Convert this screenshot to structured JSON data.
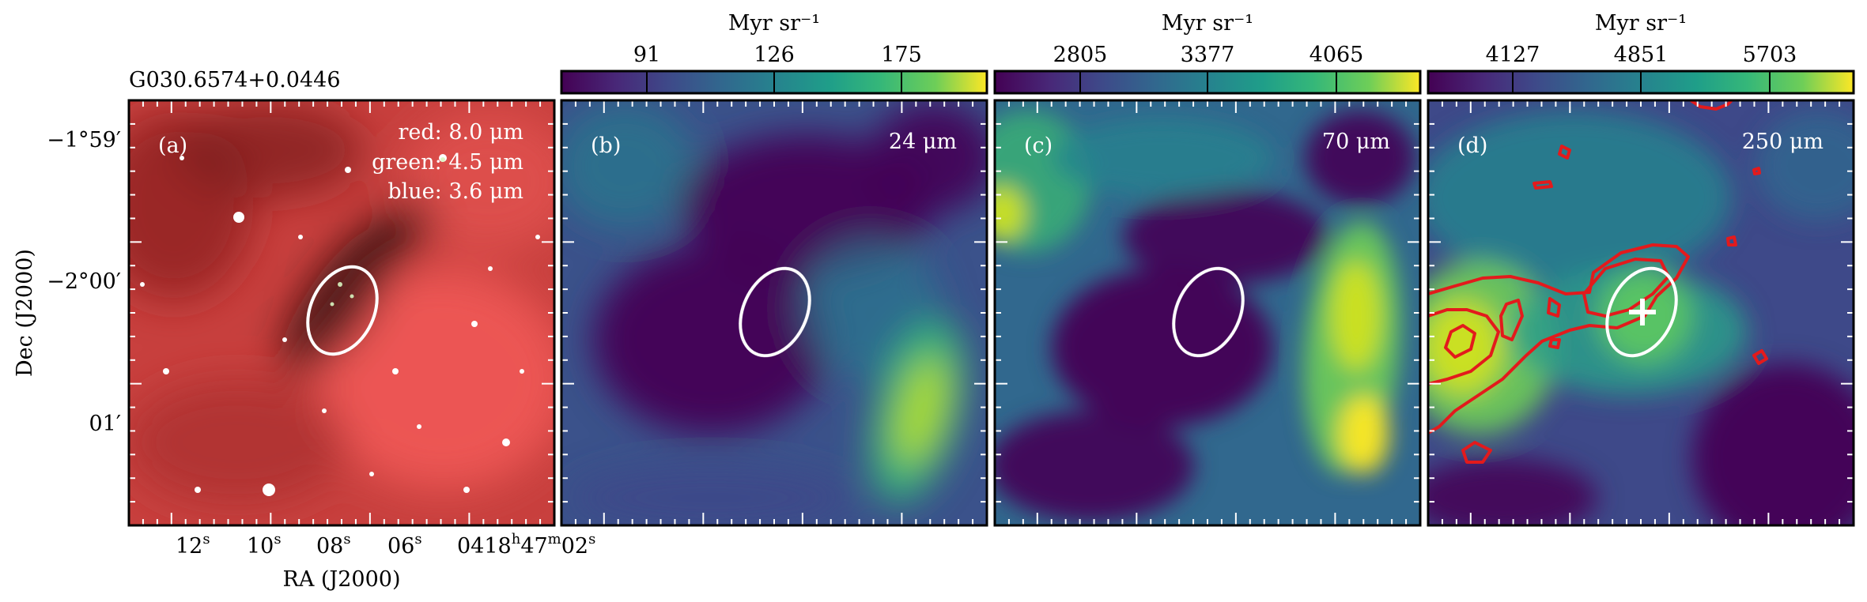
{
  "figure": {
    "source_name": "G030.6574+0.0446",
    "axes": {
      "ra_label": "RA (J2000)",
      "dec_label": "Dec (J2000)",
      "ra_ticks": [
        {
          "main": "12",
          "sup": "s"
        },
        {
          "main": "10",
          "sup": "s"
        },
        {
          "main": "08",
          "sup": "s"
        },
        {
          "main": "06",
          "sup": "s"
        },
        {
          "main": "04",
          "sup": ""
        },
        {
          "main": "18",
          "sup": "h"
        },
        {
          "main": "47",
          "sup": "m"
        },
        {
          "main": "02",
          "sup": "s"
        }
      ],
      "dec_ticks": [
        "−1°59′",
        "−2°00′",
        "01′"
      ]
    },
    "panels": [
      {
        "id": "a",
        "label": "(a)",
        "bands": [
          {
            "color": "red",
            "text": "red: 8.0 μm"
          },
          {
            "color": "green",
            "text": "green: 4.5 μm"
          },
          {
            "color": "blue",
            "text": "blue: 3.6 μm"
          }
        ]
      },
      {
        "id": "b",
        "label": "(b)",
        "band": "24 μm",
        "colorbar": {
          "unit": "Myr sr⁻¹",
          "ticks": [
            "91",
            "126",
            "175"
          ]
        }
      },
      {
        "id": "c",
        "label": "(c)",
        "band": "70 μm",
        "colorbar": {
          "unit": "Myr sr⁻¹",
          "ticks": [
            "2805",
            "3377",
            "4065"
          ]
        }
      },
      {
        "id": "d",
        "label": "(d)",
        "band": "250 μm",
        "colorbar": {
          "unit": "Myr sr⁻¹",
          "ticks": [
            "4127",
            "4851",
            "5703"
          ]
        }
      }
    ],
    "colors": {
      "viridis_low": "#440154",
      "viridis_high": "#fde725",
      "contour": "#e31a1c",
      "ellipse": "#ffffff"
    }
  }
}
